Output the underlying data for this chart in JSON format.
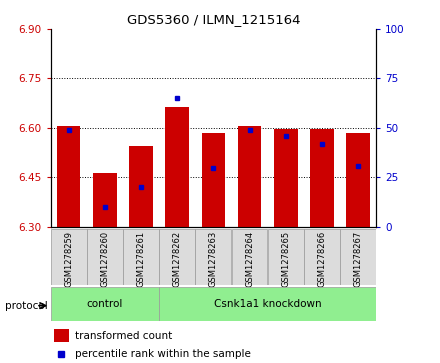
{
  "title": "GDS5360 / ILMN_1215164",
  "samples": [
    "GSM1278259",
    "GSM1278260",
    "GSM1278261",
    "GSM1278262",
    "GSM1278263",
    "GSM1278264",
    "GSM1278265",
    "GSM1278266",
    "GSM1278267"
  ],
  "red_values": [
    6.605,
    6.462,
    6.545,
    6.665,
    6.585,
    6.605,
    6.597,
    6.598,
    6.585
  ],
  "blue_values_pct": [
    49,
    10,
    20,
    65,
    30,
    49,
    46,
    42,
    31
  ],
  "ylim_left": [
    6.3,
    6.9
  ],
  "ylim_right": [
    0,
    100
  ],
  "yticks_left": [
    6.3,
    6.45,
    6.6,
    6.75,
    6.9
  ],
  "yticks_right": [
    0,
    25,
    50,
    75,
    100
  ],
  "bar_base": 6.3,
  "bar_width": 0.65,
  "red_color": "#CC0000",
  "blue_color": "#0000CC",
  "protocol_groups": [
    {
      "label": "control",
      "start": 0,
      "end": 3
    },
    {
      "label": "Csnk1a1 knockdown",
      "start": 3,
      "end": 9
    }
  ],
  "protocol_group_color": "#90EE90",
  "tick_label_color_left": "#CC0000",
  "tick_label_color_right": "#0000CC",
  "grid_color": "#000000",
  "bg_color": "#DCDCDC"
}
